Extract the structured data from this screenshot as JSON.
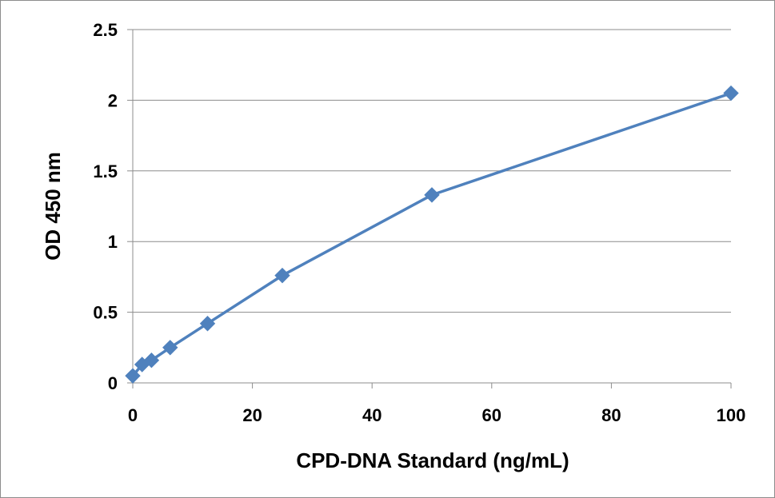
{
  "chart_data": {
    "type": "line",
    "title": "",
    "xlabel": "CPD-DNA Standard (ng/mL)",
    "ylabel": "OD 450 nm",
    "xlim": [
      0,
      100
    ],
    "ylim": [
      0,
      2.5
    ],
    "x_ticks": [
      0,
      20,
      40,
      60,
      80,
      100
    ],
    "y_ticks": [
      0,
      0.5,
      1,
      1.5,
      2,
      2.5
    ],
    "x_tick_labels": [
      "0",
      "20",
      "40",
      "60",
      "80",
      "100"
    ],
    "y_tick_labels": [
      "0",
      "0.5",
      "1",
      "1.5",
      "2",
      "2.5"
    ],
    "grid": {
      "horizontal": true,
      "vertical": false
    },
    "legend": "none",
    "series": [
      {
        "marker": "diamond",
        "color": "#4F81BD",
        "x": [
          0,
          1.56,
          3.13,
          6.25,
          12.5,
          25,
          50,
          100
        ],
        "y": [
          0.05,
          0.13,
          0.16,
          0.25,
          0.42,
          0.76,
          1.33,
          2.05
        ]
      }
    ]
  }
}
